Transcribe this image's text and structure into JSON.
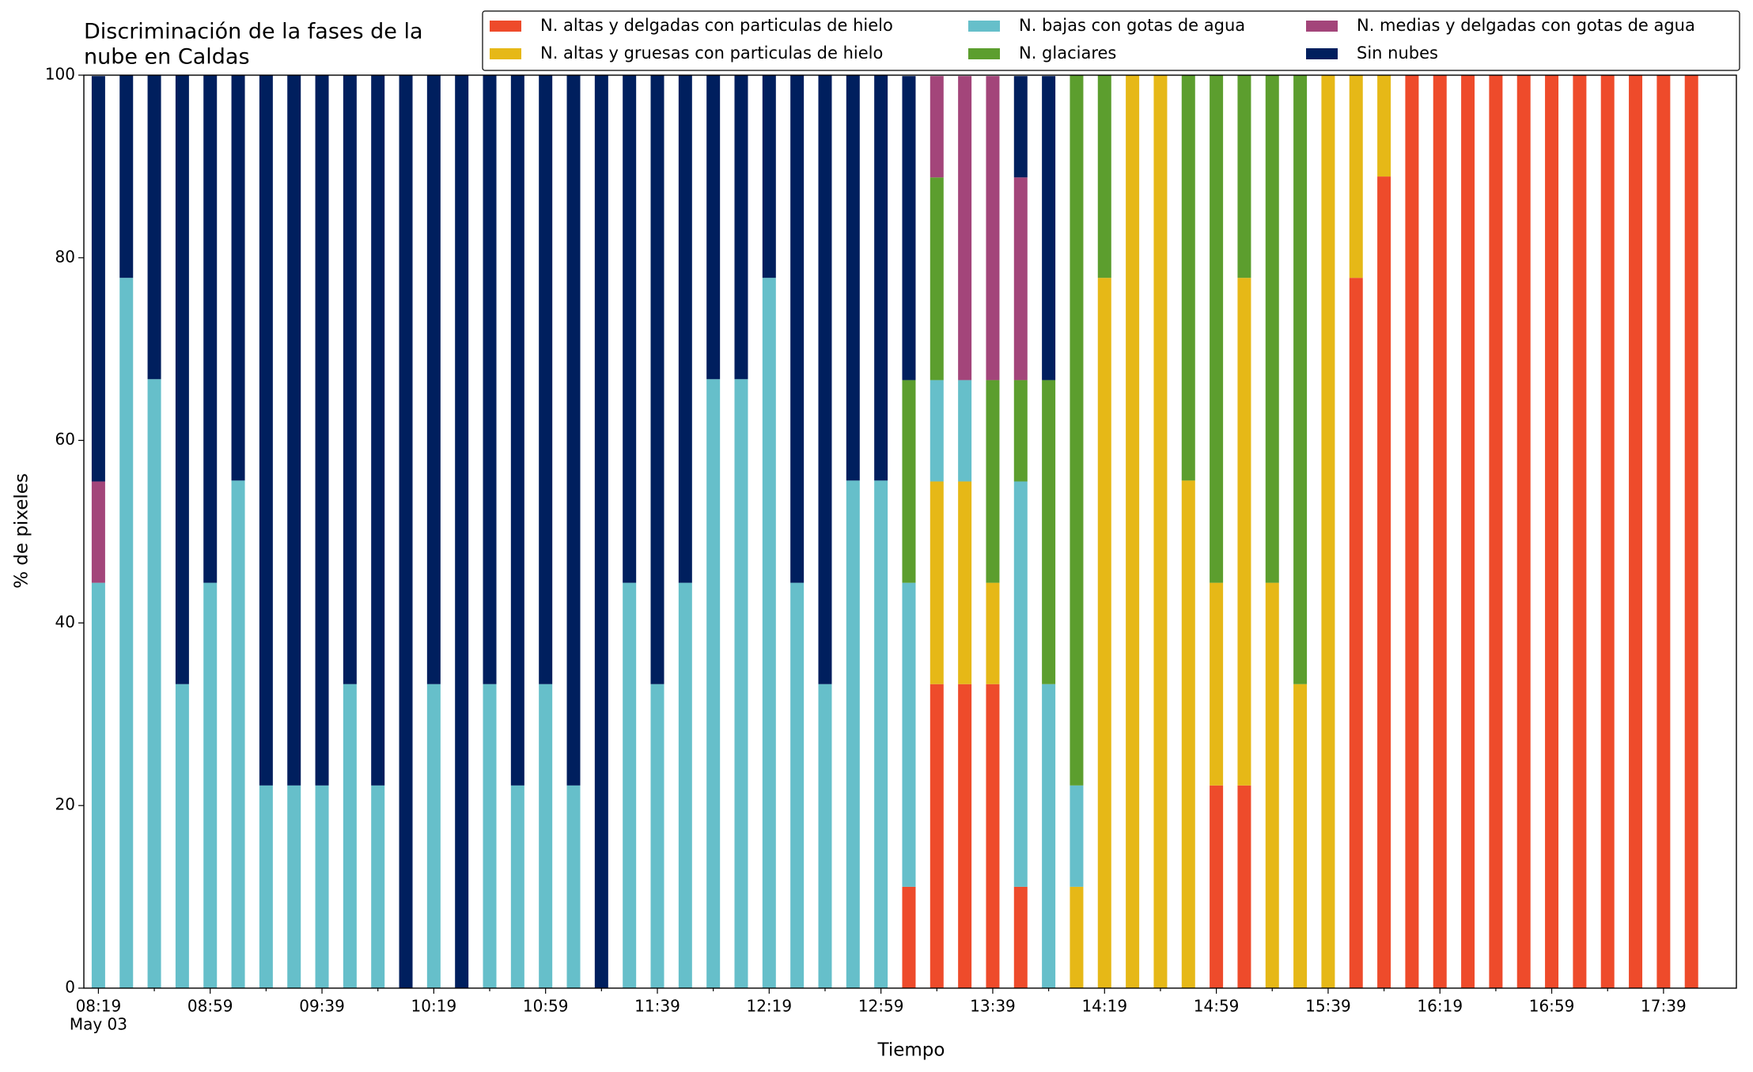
{
  "chart_data": {
    "type": "stacked_bar",
    "title": [
      "Discriminación de la fases de la",
      "nube en Caldas"
    ],
    "xlabel": "Tiempo",
    "ylabel": "% de pixeles",
    "date_label": "May 03",
    "categories": [
      "08:19",
      null,
      null,
      null,
      "08:59",
      null,
      null,
      null,
      "09:39",
      null,
      null,
      null,
      "10:19",
      null,
      null,
      null,
      "10:59",
      null,
      null,
      null,
      "11:39",
      null,
      null,
      null,
      "12:19",
      null,
      null,
      null,
      "12:59",
      null,
      null,
      null,
      "13:39",
      null,
      null,
      null,
      "14:19",
      null,
      null,
      null,
      "14:59",
      null,
      null,
      null,
      "15:39",
      null,
      null,
      null,
      "16:19",
      null,
      null,
      null,
      "16:59",
      null,
      null,
      null,
      "17:39",
      null
    ],
    "ylim": [
      0,
      100
    ],
    "yticks": [
      0,
      20,
      40,
      60,
      80,
      100
    ],
    "series": [
      {
        "name": "N. altas y delgadas con particulas de hielo",
        "color": "#ee4b2b",
        "values": [
          0,
          0,
          0,
          0,
          0,
          0,
          0,
          0,
          0,
          0,
          0,
          0,
          0,
          0,
          0,
          0,
          0,
          0,
          0,
          0,
          0,
          0,
          0,
          0,
          0,
          0,
          0,
          0,
          0,
          11.1,
          33.3,
          33.3,
          33.3,
          11.1,
          0,
          0,
          0,
          0,
          0,
          0,
          22.2,
          22.2,
          0,
          0,
          0,
          77.8,
          88.9,
          100,
          100,
          100,
          100,
          100,
          100,
          100,
          100,
          100,
          100,
          100
        ]
      },
      {
        "name": "N. altas y gruesas con particulas de hielo",
        "color": "#e6b817",
        "values": [
          0,
          0,
          0,
          0,
          0,
          0,
          0,
          0,
          0,
          0,
          0,
          0,
          0,
          0,
          0,
          0,
          0,
          0,
          0,
          0,
          0,
          0,
          0,
          0,
          0,
          0,
          0,
          0,
          0,
          0,
          22.2,
          22.2,
          11.1,
          0,
          0,
          11.1,
          77.8,
          100,
          100,
          55.6,
          22.2,
          55.6,
          44.4,
          33.3,
          100,
          22.2,
          11.1,
          0,
          0,
          0,
          0,
          0,
          0,
          0,
          0,
          0,
          0,
          0
        ]
      },
      {
        "name": "N. bajas con gotas de agua",
        "color": "#66bfca",
        "values": [
          44.4,
          77.8,
          66.7,
          33.3,
          44.4,
          55.6,
          22.2,
          22.2,
          22.2,
          33.3,
          22.2,
          0,
          33.3,
          0,
          33.3,
          22.2,
          33.3,
          22.2,
          0,
          44.4,
          33.3,
          44.4,
          66.7,
          66.7,
          77.8,
          44.4,
          33.3,
          55.6,
          55.6,
          33.3,
          11.1,
          11.1,
          0,
          44.4,
          33.3,
          11.1,
          0,
          0,
          0,
          0,
          0,
          0,
          0,
          0,
          0,
          0,
          0,
          0,
          0,
          0,
          0,
          0,
          0,
          0,
          0,
          0,
          0,
          0
        ]
      },
      {
        "name": "N. glaciares",
        "color": "#5c9e2e",
        "values": [
          0,
          0,
          0,
          0,
          0,
          0,
          0,
          0,
          0,
          0,
          0,
          0,
          0,
          0,
          0,
          0,
          0,
          0,
          0,
          0,
          0,
          0,
          0,
          0,
          0,
          0,
          0,
          0,
          0,
          22.2,
          22.2,
          0,
          22.2,
          11.1,
          33.3,
          77.8,
          22.2,
          0,
          0,
          44.4,
          55.6,
          22.2,
          55.6,
          66.7,
          0,
          0,
          0,
          0,
          0,
          0,
          0,
          0,
          0,
          0,
          0,
          0,
          0,
          0
        ]
      },
      {
        "name": "N. medias y delgadas con gotas de agua",
        "color": "#a3457a",
        "values": [
          11.1,
          0,
          0,
          0,
          0,
          0,
          0,
          0,
          0,
          0,
          0,
          0,
          0,
          0,
          0,
          0,
          0,
          0,
          0,
          0,
          0,
          0,
          0,
          0,
          0,
          0,
          0,
          0,
          0,
          0,
          11.1,
          33.3,
          33.3,
          22.2,
          0,
          0,
          0,
          0,
          0,
          0,
          0,
          0,
          0,
          0,
          0,
          0,
          0,
          0,
          0,
          0,
          0,
          0,
          0,
          0,
          0,
          0,
          0,
          0
        ]
      },
      {
        "name": "Sin nubes",
        "color": "#001f5e",
        "values": [
          44.4,
          22.2,
          33.3,
          66.7,
          55.6,
          44.4,
          77.8,
          77.8,
          77.8,
          66.7,
          77.8,
          100,
          66.7,
          100,
          66.7,
          77.8,
          66.7,
          77.8,
          100,
          55.6,
          66.7,
          55.6,
          33.3,
          33.3,
          22.2,
          55.6,
          66.7,
          44.4,
          44.4,
          33.3,
          0,
          0,
          0,
          11.1,
          33.3,
          0,
          0,
          0,
          0,
          0,
          0,
          0,
          0,
          0,
          0,
          0,
          0,
          0,
          0,
          0,
          0,
          0,
          0,
          0,
          0,
          0,
          0,
          0
        ]
      }
    ],
    "legend": "upper right"
  }
}
